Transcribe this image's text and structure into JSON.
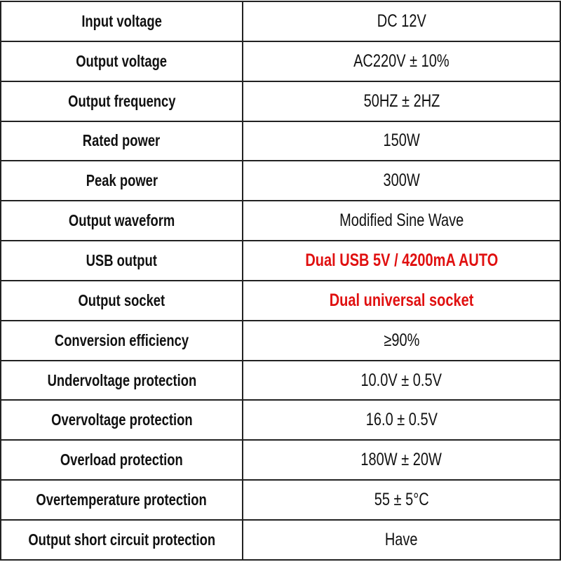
{
  "table": {
    "rows": [
      [
        "Input voltage",
        "DC 12V"
      ],
      [
        "Output voltage",
        "AC220V ± 10%"
      ],
      [
        "Output frequency",
        "50HZ ± 2HZ"
      ],
      [
        "Rated power",
        "150W"
      ],
      [
        "Peak power",
        "300W"
      ],
      [
        "Output waveform",
        "Modified Sine Wave"
      ],
      [
        "USB output",
        "Dual USB 5V / 4200mA AUTO"
      ],
      [
        "Output socket",
        "Dual universal socket"
      ],
      [
        "Conversion efficiency",
        "≥90%"
      ],
      [
        "Undervoltage protection",
        "10.0V ± 0.5V"
      ],
      [
        "Overvoltage protection",
        "16.0 ± 0.5V"
      ],
      [
        "Overload protection",
        "180W ± 20W"
      ],
      [
        "Overtemperature protection",
        "55 ± 5°C"
      ],
      [
        "Output short circuit protection",
        "Have"
      ]
    ]
  }
}
